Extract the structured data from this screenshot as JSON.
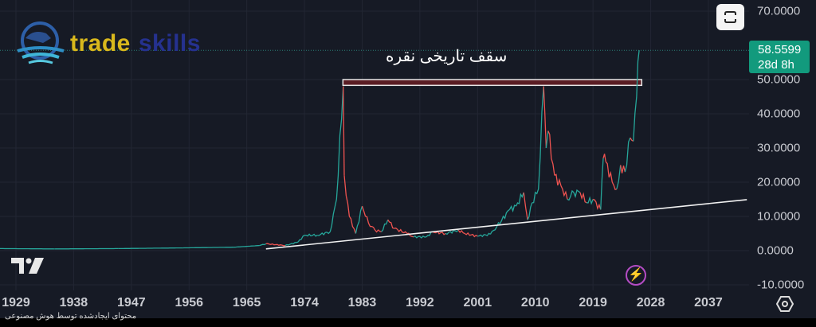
{
  "branding": {
    "logo_word1": "trade",
    "logo_word2": "skills",
    "word1_color": "#d9b81c",
    "word2_color": "#25318f"
  },
  "annotation": {
    "text": "سقف تاریخی نقره"
  },
  "price_tag": {
    "price": "58.5599",
    "countdown": "28d 8h",
    "color": "#129a7d"
  },
  "footer": {
    "ai_note": "محتوای ایجادشده توسط هوش مصنوعی"
  },
  "icons": {
    "fit": "auto-fit-icon",
    "bolt": "lightning-icon",
    "settings": "settings-hexagon-icon",
    "platform": "tradingview-logo"
  },
  "chart_data": {
    "type": "candlestick-line",
    "title": "",
    "y_ticks": [
      "70.0000",
      "50.0000",
      "40.0000",
      "30.0000",
      "20.0000",
      "10.0000",
      "0.0000",
      "-10.0000"
    ],
    "y_tick_values": [
      70,
      50,
      40,
      30,
      20,
      10,
      0,
      -10
    ],
    "x_ticks": [
      "1929",
      "1938",
      "1947",
      "1956",
      "1965",
      "1974",
      "1983",
      "1992",
      "2001",
      "2010",
      "2019",
      "2028",
      "2037"
    ],
    "ylim": [
      -10,
      70
    ],
    "xlim": [
      1926.5,
      2043
    ],
    "grid": true,
    "colors": {
      "up": "#26a69a",
      "down": "#ef5350"
    },
    "series": [
      {
        "x": [
          1926.5,
          1935,
          1945,
          1955,
          1963,
          1967,
          1968,
          1971,
          1973,
          1974,
          1976,
          1978,
          1979,
          1980.05,
          1980.2,
          1980.5,
          1981,
          1982,
          1983,
          1984,
          1985,
          1986,
          1987,
          1988,
          1990,
          1991,
          1993,
          1994,
          1996,
          1998,
          1999,
          2001,
          2003,
          2004,
          2006,
          2007,
          2008.2,
          2008.8,
          2009.5,
          2010.5,
          2011.3,
          2011.7,
          2012,
          2013,
          2014,
          2015,
          2016,
          2017,
          2018,
          2019,
          2020.2,
          2020.6,
          2021,
          2022,
          2022.7,
          2023.3,
          2024,
          2024.8,
          2025.3,
          2025.8,
          2026.2
        ],
        "y": [
          0.6,
          0.5,
          0.6,
          0.8,
          1.0,
          1.5,
          2.0,
          1.5,
          2.5,
          4.5,
          4.5,
          5.5,
          15,
          48,
          22,
          16,
          10,
          5,
          13,
          8,
          6,
          5.5,
          9,
          6.5,
          5,
          4,
          4,
          5.5,
          5,
          6,
          5,
          4.2,
          4.8,
          7,
          12,
          13,
          17,
          9,
          14,
          18,
          48,
          30,
          35,
          22,
          19,
          15,
          17,
          17,
          14,
          15,
          12,
          27,
          26,
          20,
          18,
          25,
          23,
          33,
          32,
          45,
          58.56
        ]
      }
    ],
    "horizontal_zone": {
      "from_year": 1980,
      "to_year": 2026.6,
      "low": 48.3,
      "high": 50,
      "fill": "#5a1d24"
    },
    "trendline": {
      "x": [
        1968,
        2043
      ],
      "y": [
        0.5,
        14.9
      ]
    },
    "last_price": 58.5599
  }
}
